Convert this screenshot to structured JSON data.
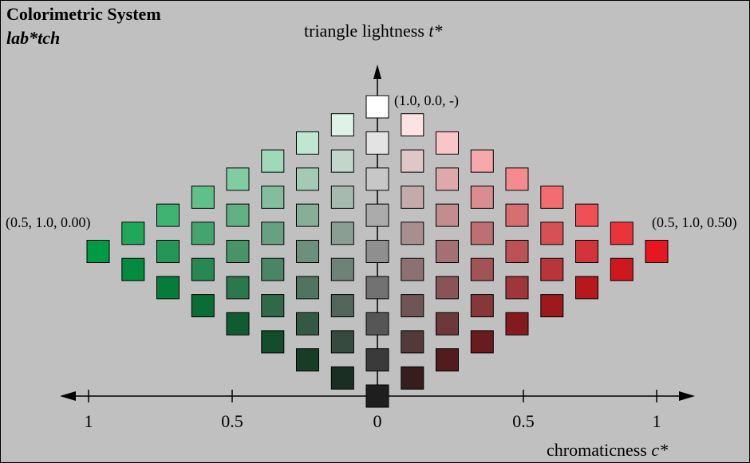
{
  "title": "Colorimetric System",
  "subtitle": "lab*tch",
  "t_axis": {
    "label": "triangle lightness ",
    "var": "t*"
  },
  "c_axis": {
    "label": "chromaticness ",
    "var": "c*",
    "ticks": [
      "1",
      "0.5",
      "0",
      "0.5",
      "1"
    ]
  },
  "annotations": {
    "top": "(1.0, 0.0, -)",
    "left": "(0.5, 1.0, 0.00)",
    "right": "(0.5, 1.0, 0.50)"
  },
  "colors": {
    "background": "#c0c0c0",
    "green_full": "#009a44",
    "red_full": "#e8161e",
    "white": "#ffffff",
    "black": "#1e1e1e"
  },
  "grid": {
    "steps": 8,
    "description_colors": [
      "green",
      "grey",
      "red"
    ]
  }
}
